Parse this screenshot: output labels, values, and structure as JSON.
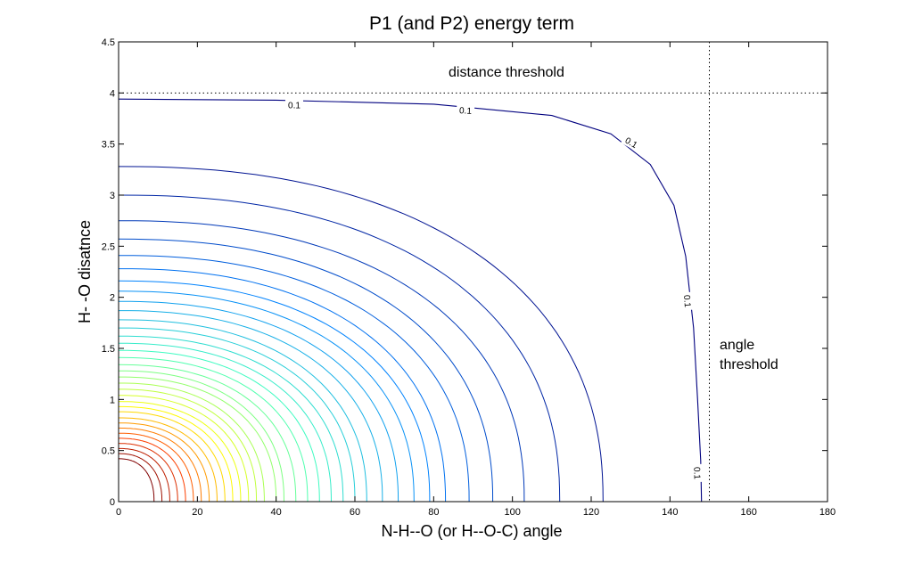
{
  "chart_data": {
    "type": "contour",
    "title": "P1 (and P2) energy term",
    "xlabel": "N-H--O (or H--O-C) angle",
    "ylabel": "H- -O disatnce",
    "xlim": [
      0,
      180
    ],
    "ylim": [
      0,
      4.5
    ],
    "xticks": [
      0,
      20,
      40,
      60,
      80,
      100,
      120,
      140,
      160,
      180
    ],
    "yticks": [
      0,
      0.5,
      1,
      1.5,
      2,
      2.5,
      3,
      3.5,
      4,
      4.5
    ],
    "contour_labels": [
      "0.1",
      "0.1",
      "0.1",
      "0.1",
      "0.1"
    ],
    "distance_threshold": {
      "label": "distance threshold",
      "y": 4
    },
    "angle_threshold": {
      "label_line1": "angle",
      "label_line2": "threshold",
      "x": 150
    },
    "outer_contour": {
      "value": "0.1",
      "x_intercept": 148,
      "y_intercept": 3.94,
      "points": [
        [
          0,
          3.94
        ],
        [
          40,
          3.93
        ],
        [
          80,
          3.89
        ],
        [
          110,
          3.78
        ],
        [
          125,
          3.6
        ],
        [
          135,
          3.3
        ],
        [
          141,
          2.9
        ],
        [
          144,
          2.4
        ],
        [
          146,
          1.7
        ],
        [
          147,
          1.0
        ],
        [
          147.8,
          0.4
        ],
        [
          148,
          0
        ]
      ]
    },
    "inner_contours": {
      "x_intercepts": [
        123,
        112,
        103,
        95,
        89,
        83,
        79,
        75,
        71,
        67,
        63,
        60,
        57,
        54,
        51,
        48,
        45,
        42,
        40,
        37,
        35,
        33,
        31,
        29,
        27,
        25,
        23,
        21,
        19,
        17,
        15,
        13,
        11,
        9
      ],
      "y_intercepts": [
        3.28,
        3.0,
        2.75,
        2.57,
        2.41,
        2.28,
        2.16,
        2.06,
        1.96,
        1.87,
        1.78,
        1.7,
        1.62,
        1.55,
        1.48,
        1.41,
        1.34,
        1.28,
        1.22,
        1.16,
        1.1,
        1.04,
        0.98,
        0.93,
        0.88,
        0.82,
        0.77,
        0.72,
        0.67,
        0.62,
        0.57,
        0.52,
        0.47,
        0.42
      ],
      "exponent": 2.3
    },
    "colors": {
      "low": "#00007f",
      "mid_low": "#0080ff",
      "mid": "#40ffbf",
      "mid_high": "#ffff00",
      "high": "#ff4000",
      "top": "#800000"
    },
    "grid": false
  }
}
